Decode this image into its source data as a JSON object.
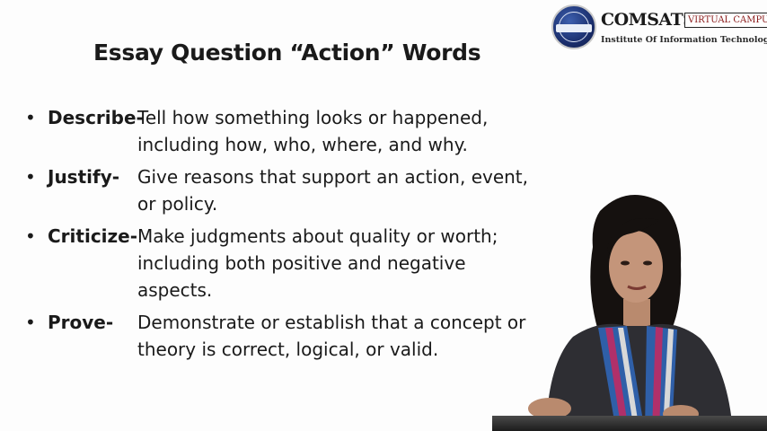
{
  "slide": {
    "title": "Essay Question “Action” Words"
  },
  "logo": {
    "name": "COMSATS",
    "tag": "VIRTUAL CAMPUS",
    "subtitle": "Institute Of Information Technology",
    "seal_text": "COMSATS"
  },
  "bullet_symbol": "•",
  "items": [
    {
      "term": "Describe-",
      "definition": "Tell how something looks or happened, including how, who, where, and why."
    },
    {
      "term": "Justify-",
      "definition": "Give reasons that support an action, event, or policy."
    },
    {
      "term": "Criticize-",
      "definition": "Make judgments about quality or worth; including both positive and negative aspects."
    },
    {
      "term": "Prove-",
      "definition": "Demonstrate or establish that a concept or theory is correct, logical, or valid."
    }
  ],
  "colors": {
    "background": "#fdfdfd",
    "text": "#1a1a1a",
    "logo_blue": "#1b2f6e",
    "logo_tag_red": "#8a1a1a",
    "scarf_blue": "#2f5fa8",
    "scarf_magenta": "#b0306a",
    "garment": "#2e2e33"
  },
  "icons": {
    "speaker": "presenter-figure",
    "seal": "comsats-seal-icon"
  }
}
